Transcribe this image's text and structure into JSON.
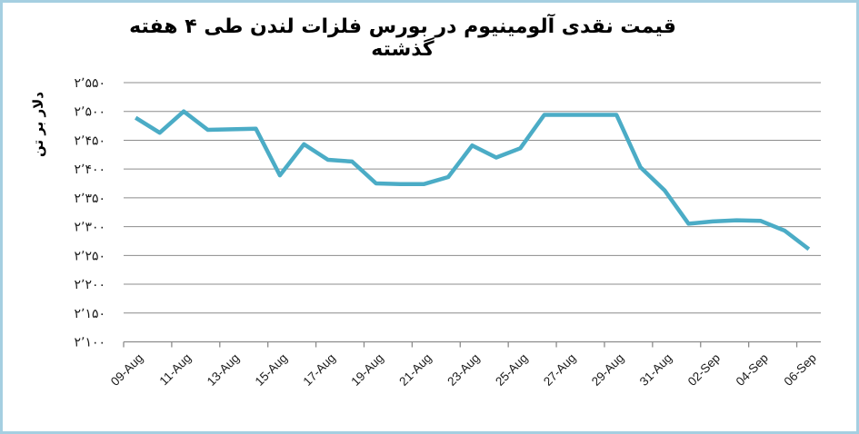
{
  "frame": {
    "background_color": "#ffffff",
    "border_color": "#a5cfe1"
  },
  "chart_data": {
    "type": "line",
    "title": "قیمت نقدی آلومینیوم در بورس فلزات لندن طی ۴ هفته گذشته",
    "ylabel": "دلار بر تن",
    "xlabel": "",
    "x": [
      "09-Aug",
      "10-Aug",
      "11-Aug",
      "12-Aug",
      "13-Aug",
      "14-Aug",
      "15-Aug",
      "16-Aug",
      "17-Aug",
      "18-Aug",
      "19-Aug",
      "20-Aug",
      "21-Aug",
      "22-Aug",
      "23-Aug",
      "24-Aug",
      "25-Aug",
      "26-Aug",
      "27-Aug",
      "28-Aug",
      "29-Aug",
      "30-Aug",
      "31-Aug",
      "01-Sep",
      "02-Sep",
      "03-Sep",
      "04-Sep",
      "05-Sep",
      "06-Sep"
    ],
    "values": [
      2489,
      2463,
      2500,
      2468,
      2469,
      2470,
      2389,
      2443,
      2416,
      2413,
      2375,
      2374,
      2374,
      2386,
      2441,
      2420,
      2436,
      2494,
      2494,
      2494,
      2494,
      2403,
      2363,
      2305,
      2309,
      2311,
      2310,
      2293,
      2261
    ],
    "x_tick_labels": [
      "09-Aug",
      "11-Aug",
      "13-Aug",
      "15-Aug",
      "17-Aug",
      "19-Aug",
      "21-Aug",
      "23-Aug",
      "25-Aug",
      "27-Aug",
      "29-Aug",
      "31-Aug",
      "02-Sep",
      "04-Sep",
      "06-Sep"
    ],
    "x_tick_interval": 2,
    "y_ticks": [
      2550,
      2500,
      2450,
      2400,
      2350,
      2300,
      2250,
      2200,
      2150,
      2100
    ],
    "y_tick_labels": [
      "۲٬۵۵۰",
      "۲٬۵۰۰",
      "۲٬۴۵۰",
      "۲٬۴۰۰",
      "۲٬۳۵۰",
      "۲٬۳۰۰",
      "۲٬۲۵۰",
      "۲٬۲۰۰",
      "۲٬۱۵۰",
      "۲٬۱۰۰"
    ],
    "ylim": [
      2100,
      2550
    ],
    "grid": true,
    "legend": "none",
    "line_color": "#4bacc6",
    "grid_color": "#8c8c8c",
    "axis_color": "#8c8c8c",
    "label_color": "#1a1a1a"
  }
}
